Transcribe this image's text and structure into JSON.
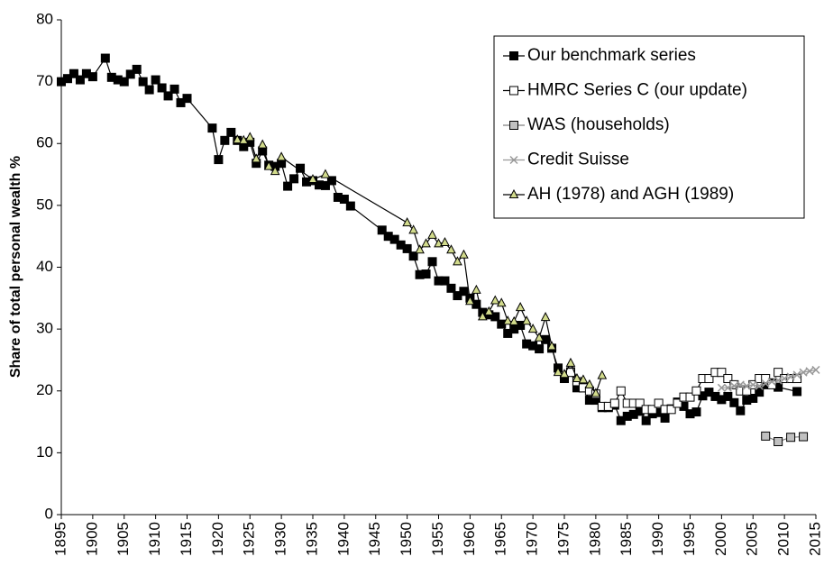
{
  "chart_data": {
    "type": "line",
    "y_label": "Share of total personal wealth %",
    "xlim": [
      1895,
      2015
    ],
    "xticks": [
      1895,
      1900,
      1905,
      1910,
      1915,
      1920,
      1925,
      1930,
      1935,
      1940,
      1945,
      1950,
      1955,
      1960,
      1965,
      1970,
      1975,
      1980,
      1985,
      1990,
      1995,
      2000,
      2005,
      2010,
      2015
    ],
    "ylim": [
      0,
      80
    ],
    "yticks": [
      0,
      10,
      20,
      30,
      40,
      50,
      60,
      70,
      80
    ],
    "grid": false,
    "legend": "upper right",
    "series": [
      {
        "name": "Our benchmark series",
        "color": "#000000",
        "marker": "square",
        "marker_fill": "#000000",
        "x": [
          1895,
          1896,
          1897,
          1898,
          1899,
          1900,
          1902,
          1903,
          1904,
          1905,
          1906,
          1907,
          1908,
          1909,
          1910,
          1911,
          1912,
          1913,
          1914,
          1915,
          1919,
          1920,
          1921,
          1922,
          1923,
          1924,
          1925,
          1926,
          1927,
          1928,
          1929,
          1930,
          1931,
          1932,
          1933,
          1934,
          1935,
          1936,
          1937,
          1938,
          1939,
          1940,
          1941,
          1946,
          1947,
          1948,
          1949,
          1950,
          1951,
          1952,
          1953,
          1954,
          1955,
          1956,
          1957,
          1958,
          1959,
          1960,
          1961,
          1962,
          1963,
          1964,
          1965,
          1966,
          1967,
          1968,
          1969,
          1970,
          1971,
          1972,
          1973,
          1974,
          1975,
          1976,
          1977,
          1978,
          1979,
          1980,
          1981,
          1982,
          1983,
          1984,
          1985,
          1986,
          1987,
          1988,
          1989,
          1990,
          1991,
          1992,
          1993,
          1994,
          1995,
          1996,
          1997,
          1998,
          1999,
          2000,
          2001,
          2002,
          2003,
          2004,
          2005,
          2006,
          2007,
          2008,
          2009,
          2012
        ],
        "values": [
          70,
          70.5,
          71.3,
          70.3,
          71.3,
          70.8,
          73.8,
          70.7,
          70.3,
          70,
          71.2,
          72,
          70,
          68.7,
          70.3,
          69,
          67.7,
          68.8,
          66.6,
          67.3,
          62.5,
          57.4,
          60.5,
          61.8,
          60.5,
          59.5,
          60.2,
          56.8,
          58.8,
          56.5,
          56.3,
          56.8,
          53.1,
          54.3,
          56,
          53.8,
          54,
          53.3,
          53.2,
          54,
          51.3,
          51,
          49.9,
          46,
          45,
          44.5,
          43.6,
          43,
          41.8,
          38.8,
          38.9,
          40.9,
          37.8,
          37.8,
          36.6,
          35.4,
          36.1,
          35,
          34,
          32.7,
          32.3,
          32,
          30.8,
          29.3,
          30,
          30.6,
          27.6,
          27.3,
          26.8,
          28.3,
          26.9,
          23.7,
          22,
          23.1,
          20.5,
          20.5,
          18.5,
          18.5,
          17.3,
          17.3,
          17.7,
          15.2,
          15.9,
          16.2,
          16.7,
          15.2,
          16.3,
          16.5,
          15.6,
          17.1,
          18.2,
          17.5,
          16.3,
          16.6,
          19.2,
          19.8,
          19.1,
          18.6,
          19.1,
          18.1,
          16.8,
          18.5,
          18.8,
          19.8,
          21,
          21.3,
          20.6,
          19.9
        ]
      },
      {
        "name": "HMRC Series C (our update)",
        "color": "#000000",
        "marker": "square",
        "marker_fill": "#ffffff",
        "x": [
          1976,
          1977,
          1978,
          1979,
          1980,
          1981,
          1982,
          1983,
          1984,
          1985,
          1986,
          1987,
          1988,
          1989,
          1990,
          1991,
          1992,
          1993,
          1994,
          1995,
          1996,
          1997,
          1998,
          1999,
          2000,
          2001,
          2002,
          2003,
          2004,
          2005,
          2006,
          2007,
          2008,
          2009,
          2010,
          2011,
          2012
        ],
        "values": [
          23,
          21.5,
          20.5,
          20,
          19.5,
          17.5,
          17.5,
          18,
          20,
          18,
          18,
          18,
          17,
          17,
          18,
          17,
          17,
          18,
          19,
          19,
          20,
          22,
          22,
          23,
          23,
          22,
          21,
          20,
          20,
          21,
          22,
          22,
          21,
          23,
          22,
          22,
          22
        ]
      },
      {
        "name": "WAS (households)",
        "color": "#808080",
        "marker": "square",
        "marker_fill": "#c0c0c0",
        "x": [
          2007,
          2009,
          2011,
          2013
        ],
        "values": [
          12.7,
          11.8,
          12.5,
          12.6
        ]
      },
      {
        "name": "Credit Suisse",
        "color": "#999999",
        "marker": "x",
        "marker_fill": "#999999",
        "x": [
          2000,
          2001,
          2002,
          2003,
          2004,
          2005,
          2006,
          2007,
          2008,
          2009,
          2010,
          2011,
          2012,
          2013,
          2014,
          2015
        ],
        "values": [
          20.5,
          20.5,
          20.8,
          21,
          20.8,
          21,
          20.8,
          21.2,
          21.5,
          21.7,
          22,
          22.3,
          22.6,
          23,
          23.2,
          23.4
        ]
      },
      {
        "name": "AH (1978) and AGH (1989)",
        "color": "#000000",
        "marker": "triangle",
        "marker_fill": "#d2db8c",
        "x": [
          1923,
          1924,
          1925,
          1926,
          1927,
          1928,
          1929,
          1930,
          1935,
          1937,
          1950,
          1951,
          1952,
          1953,
          1954,
          1955,
          1956,
          1957,
          1958,
          1959,
          1960,
          1961,
          1962,
          1963,
          1964,
          1965,
          1966,
          1967,
          1968,
          1969,
          1970,
          1971,
          1972,
          1973,
          1974,
          1975,
          1976,
          1977,
          1978,
          1979,
          1980,
          1981
        ],
        "values": [
          60.6,
          60.5,
          61,
          57.5,
          59.8,
          56.3,
          55.5,
          57.8,
          54.2,
          55,
          47.2,
          46,
          42.8,
          43.8,
          45.2,
          43.8,
          44,
          42.8,
          40.9,
          42,
          34.5,
          36.3,
          32,
          32.8,
          34.6,
          34.2,
          31.3,
          31.2,
          33.5,
          31.3,
          30,
          28.6,
          31.9,
          27.2,
          23,
          22.7,
          24.5,
          22,
          21.8,
          21,
          19.6,
          22.5
        ]
      }
    ]
  }
}
